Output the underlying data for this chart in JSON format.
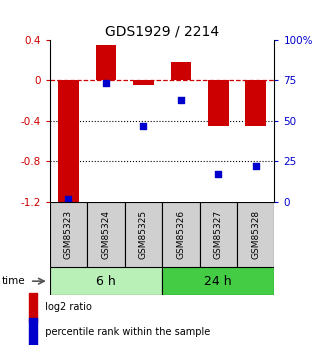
{
  "title": "GDS1929 / 2214",
  "samples": [
    "GSM85323",
    "GSM85324",
    "GSM85325",
    "GSM85326",
    "GSM85327",
    "GSM85328"
  ],
  "log2_ratio": [
    -1.2,
    0.35,
    -0.05,
    0.18,
    -0.45,
    -0.45
  ],
  "percentile_rank": [
    2,
    73,
    47,
    63,
    17,
    22
  ],
  "ylim_left": [
    -1.2,
    0.4
  ],
  "ylim_right": [
    0,
    100
  ],
  "left_ticks": [
    0.4,
    0,
    -0.4,
    -0.8,
    -1.2
  ],
  "right_ticks": [
    100,
    75,
    50,
    25,
    0
  ],
  "groups": [
    {
      "label": "6 h",
      "indices": [
        0,
        1,
        2
      ],
      "color": "#b8f0b8"
    },
    {
      "label": "24 h",
      "indices": [
        3,
        4,
        5
      ],
      "color": "#44cc44"
    }
  ],
  "bar_color": "#cc0000",
  "dot_color": "#0000cc",
  "bar_width": 0.55,
  "hline_color": "#cc0000",
  "hline_style": "--",
  "dotted_lines": [
    -0.4,
    -0.8
  ],
  "legend_items": [
    {
      "label": "log2 ratio",
      "color": "#cc0000"
    },
    {
      "label": "percentile rank within the sample",
      "color": "#0000cc"
    }
  ],
  "time_label": "time",
  "title_fontsize": 10,
  "tick_fontsize": 7.5,
  "sample_fontsize": 6.5,
  "group_fontsize": 9
}
